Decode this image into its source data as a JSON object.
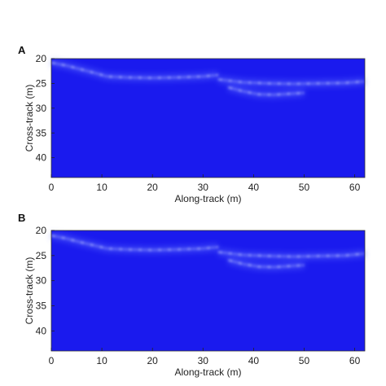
{
  "chart_data": [
    {
      "type": "heatmap",
      "panel_label": "A",
      "xlabel": "Along-track (m)",
      "ylabel": "Cross-track (m)",
      "xlim": [
        0,
        62
      ],
      "ylim": [
        20,
        44
      ],
      "x_ticks": [
        0,
        10,
        20,
        30,
        40,
        50,
        60
      ],
      "y_ticks": [
        20,
        25,
        30,
        35,
        40
      ],
      "y_inverted": true,
      "grid": false,
      "background_color": "#1a1aee",
      "highlight_color": "#dfe8ff",
      "features": [
        {
          "shape": "arc",
          "x": [
            0,
            3,
            6,
            9,
            11,
            15,
            20,
            25,
            30,
            33
          ],
          "y": [
            20.8,
            21.4,
            22.2,
            23.0,
            23.6,
            23.8,
            23.9,
            23.8,
            23.6,
            23.3
          ]
        },
        {
          "shape": "arc",
          "x": [
            33,
            38,
            43,
            48,
            53,
            58,
            62
          ],
          "y": [
            24.2,
            24.8,
            25.0,
            25.1,
            25.0,
            24.9,
            24.6
          ]
        },
        {
          "shape": "arc",
          "x": [
            35,
            38,
            41,
            44,
            47,
            50
          ],
          "y": [
            25.8,
            26.6,
            27.2,
            27.3,
            27.1,
            26.9
          ]
        }
      ]
    },
    {
      "type": "heatmap",
      "panel_label": "B",
      "xlabel": "Along-track (m)",
      "ylabel": "Cross-track (m)",
      "xlim": [
        0,
        62
      ],
      "ylim": [
        20,
        44
      ],
      "x_ticks": [
        0,
        10,
        20,
        30,
        40,
        50,
        60
      ],
      "y_ticks": [
        20,
        25,
        30,
        35,
        40
      ],
      "y_inverted": true,
      "grid": false,
      "background_color": "#1a1aee",
      "highlight_color": "#dfe8ff",
      "features": [
        {
          "shape": "arc",
          "x": [
            0,
            3,
            6,
            9,
            11,
            15,
            20,
            25,
            30,
            33
          ],
          "y": [
            21.0,
            21.6,
            22.4,
            23.1,
            23.6,
            23.8,
            23.9,
            23.8,
            23.6,
            23.3
          ]
        },
        {
          "shape": "arc",
          "x": [
            33,
            38,
            43,
            48,
            53,
            58,
            62
          ],
          "y": [
            24.3,
            24.9,
            25.1,
            25.2,
            25.1,
            25.0,
            24.6
          ]
        },
        {
          "shape": "arc",
          "x": [
            35,
            38,
            41,
            44,
            47,
            50
          ],
          "y": [
            25.9,
            26.7,
            27.2,
            27.3,
            27.1,
            26.9
          ]
        }
      ]
    }
  ]
}
